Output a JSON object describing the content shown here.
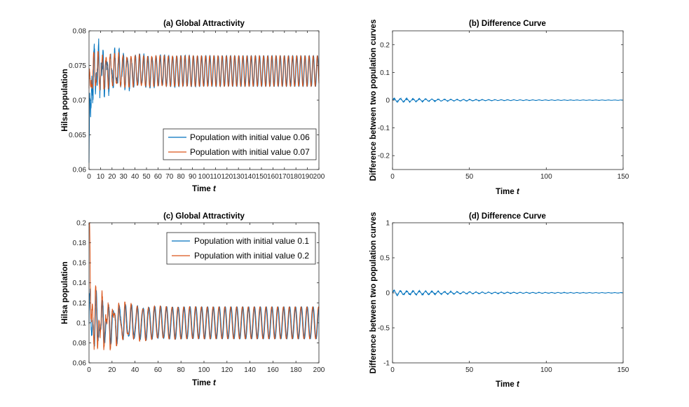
{
  "chart_data": [
    {
      "id": "a",
      "type": "line",
      "title": "(a) Global Attractivity",
      "xlabel": "Time",
      "xlabel_var": "t",
      "ylabel": "Hilsa population",
      "xlim": [
        0,
        200
      ],
      "ylim": [
        0.06,
        0.08
      ],
      "xticks": [
        0,
        10,
        20,
        30,
        40,
        50,
        60,
        70,
        80,
        90,
        100,
        110,
        120,
        130,
        140,
        150,
        160,
        170,
        180,
        190,
        200
      ],
      "yticks": [
        0.06,
        0.065,
        0.07,
        0.075,
        0.08
      ],
      "ytick_labels": [
        "0.06",
        "0.065",
        "0.07",
        "0.075",
        "0.08"
      ],
      "legend": "bottom-right",
      "series": [
        {
          "name": "Population with initial value 0.06",
          "color": "#0072BD",
          "init": 0.06,
          "center": 0.0742,
          "amp": 0.0022,
          "period": 3.6,
          "transient": 0.003,
          "decay": 22,
          "noise": 0.0025
        },
        {
          "name": "Population with initial value 0.07",
          "color": "#D95319",
          "init": 0.07,
          "center": 0.0742,
          "amp": 0.0022,
          "period": 3.6,
          "transient": 0.001,
          "decay": 22,
          "noise": 0.0012
        }
      ]
    },
    {
      "id": "b",
      "type": "line",
      "title": "(b) Difference Curve",
      "xlabel": "Time",
      "xlabel_var": "t",
      "ylabel": "Difference between two population curves",
      "xlim": [
        0,
        150
      ],
      "ylim": [
        -0.25,
        0.25
      ],
      "xticks": [
        0,
        50,
        100,
        150
      ],
      "yticks": [
        -0.2,
        -0.1,
        0,
        0.1,
        0.2
      ],
      "ytick_labels": [
        "-0.2",
        "-0.1",
        "0",
        "0.1",
        "0.2"
      ],
      "series": [
        {
          "name": "Difference",
          "color": "#0072BD",
          "amp": 0.006,
          "decay": 40
        }
      ]
    },
    {
      "id": "c",
      "type": "line",
      "title": "(c) Global Attractivity",
      "xlabel": "Time",
      "xlabel_var": "t",
      "ylabel": "Hilsa population",
      "xlim": [
        0,
        200
      ],
      "ylim": [
        0.06,
        0.2
      ],
      "xticks": [
        0,
        20,
        40,
        60,
        80,
        100,
        120,
        140,
        160,
        180,
        200
      ],
      "yticks": [
        0.06,
        0.08,
        0.1,
        0.12,
        0.14,
        0.16,
        0.18,
        0.2
      ],
      "ytick_labels": [
        "0.06",
        "0.08",
        "0.1",
        "0.12",
        "0.14",
        "0.16",
        "0.18",
        "0.2"
      ],
      "legend": "top-right",
      "series": [
        {
          "name": "Population with initial value 0.1",
          "color": "#0072BD",
          "init": 0.1,
          "center": 0.1,
          "amp": 0.016,
          "period": 5.1,
          "transient": 0.02,
          "decay": 18,
          "noise": 0.01
        },
        {
          "name": "Population with initial value 0.2",
          "color": "#D95319",
          "init": 0.2,
          "center": 0.1,
          "amp": 0.016,
          "period": 5.1,
          "transient": 0.03,
          "decay": 18,
          "noise": 0.012
        }
      ]
    },
    {
      "id": "d",
      "type": "line",
      "title": "(d) Difference Curve",
      "xlabel": "Time",
      "xlabel_var": "t",
      "ylabel": "Difference between two population curves",
      "xlim": [
        0,
        150
      ],
      "ylim": [
        -1,
        1
      ],
      "xticks": [
        0,
        50,
        100,
        150
      ],
      "yticks": [
        -1,
        -0.5,
        0,
        0.5,
        1
      ],
      "ytick_labels": [
        "-1",
        "-0.5",
        "0",
        "0.5",
        "1"
      ],
      "series": [
        {
          "name": "Difference",
          "color": "#0072BD",
          "amp": 0.03,
          "decay": 45
        }
      ]
    }
  ]
}
